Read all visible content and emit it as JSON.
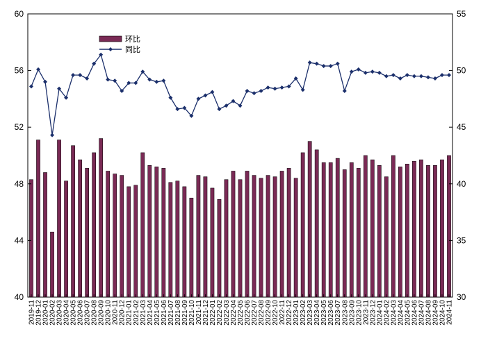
{
  "chart_data": {
    "type": "bar+line",
    "categories": [
      "2019-11",
      "2019-12",
      "2020-01",
      "2020-02",
      "2020-03",
      "2020-04",
      "2020-05",
      "2020-06",
      "2020-07",
      "2020-08",
      "2020-09",
      "2020-10",
      "2020-11",
      "2020-12",
      "2021-01",
      "2021-02",
      "2021-03",
      "2021-04",
      "2021-05",
      "2021-06",
      "2021-07",
      "2021-08",
      "2021-09",
      "2021-10",
      "2021-11",
      "2021-12",
      "2022-01",
      "2022-02",
      "2022-03",
      "2022-04",
      "2022-05",
      "2022-06",
      "2022-07",
      "2022-08",
      "2022-09",
      "2022-10",
      "2022-11",
      "2022-12",
      "2023-01",
      "2023-02",
      "2023-03",
      "2023-04",
      "2023-05",
      "2023-06",
      "2023-07",
      "2023-08",
      "2023-09",
      "2023-10",
      "2023-11",
      "2023-12",
      "2024-01",
      "2024-02",
      "2024-03",
      "2024-04",
      "2024-05",
      "2024-06",
      "2024-07",
      "2024-08",
      "2024-09",
      "2024-10",
      "2024-11"
    ],
    "series": [
      {
        "name": "环比",
        "type": "bar",
        "axis": "left",
        "color": "#7a2a55",
        "values": [
          48.3,
          51.1,
          48.8,
          44.6,
          51.1,
          48.2,
          50.7,
          49.7,
          49.1,
          50.2,
          51.2,
          48.9,
          48.7,
          48.6,
          47.8,
          47.9,
          50.2,
          49.3,
          49.2,
          49.1,
          48.1,
          48.2,
          47.8,
          47.0,
          48.6,
          48.5,
          47.7,
          46.9,
          48.3,
          48.9,
          48.3,
          48.9,
          48.6,
          48.4,
          48.6,
          48.5,
          48.9,
          49.1,
          48.4,
          50.2,
          51.0,
          50.4,
          49.5,
          49.5,
          49.8,
          49.0,
          49.5,
          49.1,
          50.0,
          49.7,
          49.3,
          48.5,
          50.0,
          49.2,
          49.4,
          49.6,
          49.7,
          49.3,
          49.3,
          49.7,
          50.0
        ]
      },
      {
        "name": "同比",
        "type": "line",
        "axis": "right",
        "color": "#1b2f6b",
        "values": [
          48.6,
          50.1,
          49.0,
          44.3,
          48.4,
          47.6,
          49.6,
          49.6,
          49.3,
          50.6,
          51.4,
          49.2,
          49.1,
          48.2,
          48.9,
          48.9,
          49.9,
          49.2,
          49.0,
          49.1,
          47.6,
          46.6,
          46.7,
          46.0,
          47.5,
          47.8,
          48.1,
          46.6,
          46.9,
          47.3,
          46.9,
          48.2,
          48.0,
          48.2,
          48.5,
          48.4,
          48.5,
          48.6,
          49.3,
          48.3,
          50.7,
          50.6,
          50.4,
          50.4,
          50.6,
          48.2,
          49.9,
          50.1,
          49.8,
          49.9,
          49.8,
          49.5,
          49.6,
          49.3,
          49.6,
          49.5,
          49.5,
          49.4,
          49.3,
          49.6,
          49.6
        ]
      }
    ],
    "y_left": {
      "min": 40,
      "max": 60,
      "ticks": [
        "40",
        "44",
        "48",
        "52",
        "56",
        "60"
      ]
    },
    "y_right": {
      "min": 30,
      "max": 55,
      "ticks": [
        "30",
        "35",
        "40",
        "45",
        "50",
        "55"
      ]
    },
    "x_ticks": [
      "2019-11",
      "2019-12",
      "2020-01",
      "2020-02",
      "2020-03",
      "2020-04",
      "2020-05",
      "2020-06",
      "2020-07",
      "2020-08",
      "2020-09",
      "2020-10",
      "2020-11",
      "2020-12",
      "2021-01",
      "2021-02",
      "2021-03",
      "2021-04",
      "2021-05",
      "2021-06",
      "2021-07",
      "2021-08",
      "2021-09",
      "2021-10",
      "2021-11",
      "2021-12",
      "2022-01",
      "2022-02",
      "2022-03",
      "2022-04",
      "2022-05",
      "2022-06",
      "2022-07",
      "2022-08",
      "2022-09",
      "2022-10",
      "2022-11",
      "2022-12",
      "2023-01",
      "2023-02",
      "2023-03",
      "2023-04",
      "2023-05",
      "2023-06",
      "2023-07",
      "2023-08",
      "2023-09",
      "2023-10",
      "2023-11",
      "2023-12",
      "2024-01",
      "2024-02",
      "2024-03",
      "2024-04",
      "2024-05",
      "2024-06",
      "2024-07",
      "2024-08",
      "2024-09",
      "2024-10",
      "2024-11"
    ],
    "legend": {
      "placement": "top-left",
      "entries": [
        "环比",
        "同比"
      ]
    },
    "grid": false
  }
}
